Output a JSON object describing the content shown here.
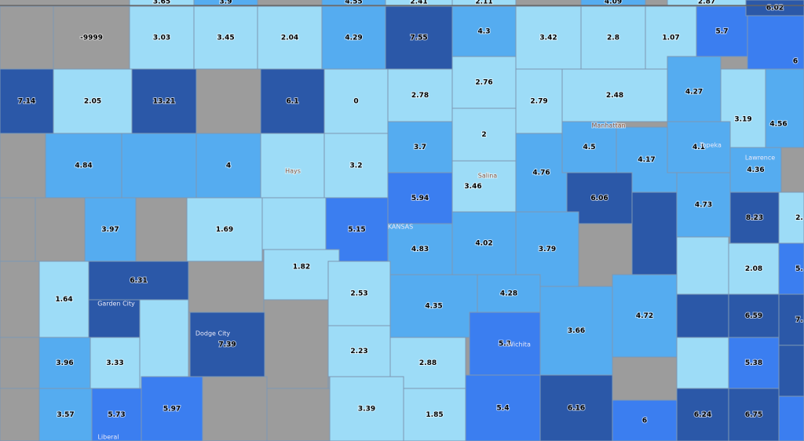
{
  "county_values": [
    "3.65",
    "3.9",
    "4.55",
    "2.41",
    "2.11",
    "4.09",
    "2.87",
    "6.02",
    "-9999",
    "3.03",
    "3.45",
    "2.04",
    "4.29",
    "7.55",
    "4.3",
    "3.42",
    "2.8",
    "1.07",
    "5.7",
    "6",
    "7.14",
    "2.05",
    "13.21",
    "6.1",
    "0",
    "2.78",
    "2.76",
    "2.79",
    "2.48",
    "4.27",
    "3.19",
    "4.56",
    "4.84",
    "4",
    "3.2",
    "3.7",
    "2",
    "3.46",
    "4.76",
    "4.5",
    "4.17",
    "4.1",
    "4.36",
    "6.06",
    "3.97",
    "1.69",
    "5.15",
    "5.94",
    "4.83",
    "4.02",
    "3.79",
    "4.73",
    "8.23",
    "2.",
    "1.64",
    "6.31",
    "1.82",
    "2.53",
    "4.35",
    "4.28",
    "5.3",
    "3.66",
    "4.72",
    "2.08",
    "6.59",
    "5.",
    "7.",
    "7.39",
    "3.96",
    "3.33",
    "2.23",
    "2.88",
    "5.38",
    "3.57",
    "5.73",
    "5.97",
    "3.39",
    "1.85",
    "5.4",
    "6.16",
    "6",
    "6.24",
    "6.75"
  ],
  "places": [
    "Hays",
    "Manhattan",
    "Salina",
    "KANSAS",
    "Topeka",
    "Lawrence",
    "Garden City",
    "Dodge City",
    "Wichita",
    "Liberal"
  ]
}
